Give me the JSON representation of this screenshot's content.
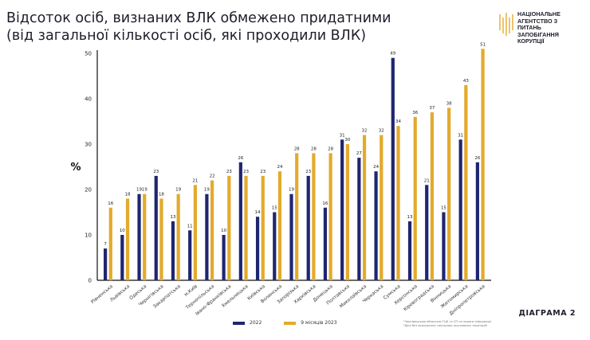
{
  "title_line1": "Відсоток осіб, визнаних ВЛК обмежено придатними",
  "title_line2": "(від загальної кількості осіб, які проходили ВЛК)",
  "logo_text": "Національне агентство з питань запобігання корупції",
  "diagram_label": "ДІАГРАМА 2",
  "footnotes": [
    "¹Чернівецькою обласною ТЦК та СП не надано інформації",
    "²Дані без врахування тимчасово окупованих територій"
  ],
  "colors": {
    "2022": "#1f2670",
    "2023": "#e3aa2b"
  },
  "chart_data": {
    "type": "bar",
    "ylabel": "%",
    "ylim": [
      0,
      50
    ],
    "yticks": [
      0,
      10,
      20,
      30,
      40,
      50
    ],
    "legend_position": "bottom",
    "categories": [
      "Рівненська",
      "Львівська",
      "Одеська",
      "Чернігівська",
      "Закарпатська",
      "м.Київ",
      "Тернопільська",
      "Івано-Франківська",
      "Хмельницька",
      "Київська",
      "Волинська",
      "Запорізька",
      "Харківська",
      "Донецька",
      "Полтавська",
      "Миколаївська",
      "Черкаська",
      "Сумська",
      "Херсонська",
      "Кіровоградська",
      "Вінницька",
      "Житомирська",
      "Дніпропетровська"
    ],
    "series": [
      {
        "name": "2022",
        "values": [
          7,
          10,
          19,
          23,
          13,
          11,
          19,
          10,
          26,
          14,
          15,
          19,
          23,
          16,
          31,
          27,
          24,
          49,
          13,
          21,
          15,
          31,
          26
        ]
      },
      {
        "name": "9 місяців 2023",
        "values": [
          16,
          18,
          19,
          18,
          19,
          21,
          22,
          23,
          23,
          23,
          24,
          28,
          28,
          28,
          30,
          32,
          32,
          34,
          36,
          37,
          38,
          43,
          51
        ]
      }
    ]
  }
}
